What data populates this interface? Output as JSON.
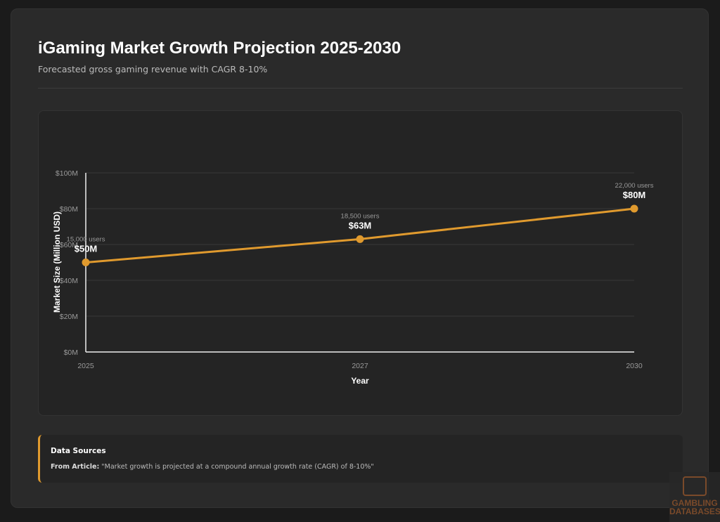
{
  "header": {
    "title": "iGaming Market Growth Projection 2025-2030",
    "subtitle": "Forecasted gross gaming revenue with CAGR 8-10%"
  },
  "chart_data": {
    "type": "line",
    "categories": [
      "2025",
      "2027",
      "2030"
    ],
    "values": [
      50,
      63,
      80
    ],
    "value_labels": [
      "$50M",
      "$63M",
      "$80M"
    ],
    "point_annotations": [
      "15,000 users",
      "18,500 users",
      "22,000 users"
    ],
    "xlabel": "Year",
    "ylabel": "Market Size (Million USD)",
    "ylim": [
      0,
      100
    ],
    "yticks": [
      0,
      20,
      40,
      60,
      80,
      100
    ],
    "ytick_labels": [
      "$0M",
      "$20M",
      "$40M",
      "$60M",
      "$80M",
      "$100M"
    ],
    "grid": true,
    "color": "#e09a2e"
  },
  "sources": {
    "heading": "Data Sources",
    "label": "From Article:",
    "quote": "\"Market growth is projected at a compound annual growth rate (CAGR) of 8-10%\""
  },
  "watermark": {
    "text": "GAMBLING DATABASES",
    "line1": "GAMBLING",
    "line2": "DATABASES"
  }
}
